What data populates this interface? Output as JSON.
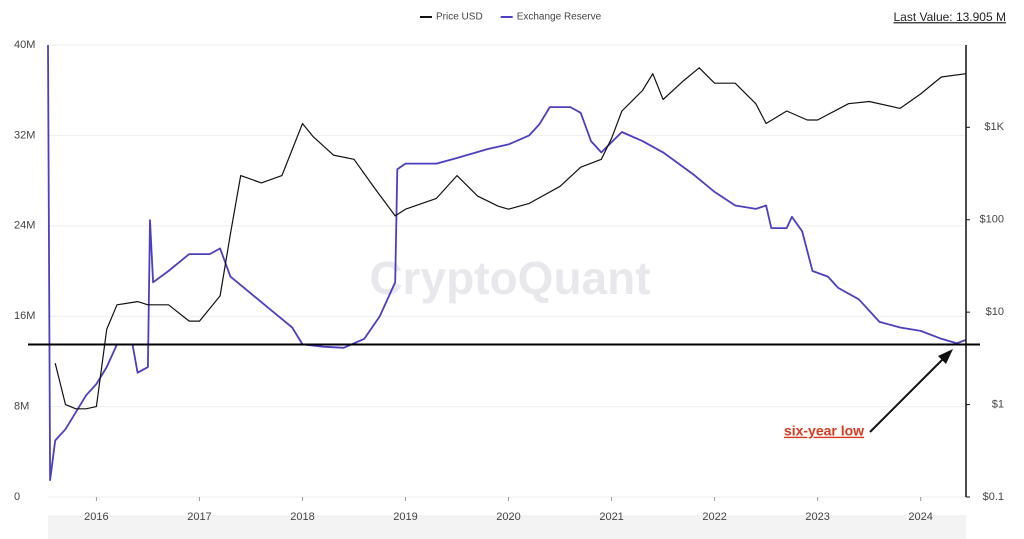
{
  "chart_data": {
    "type": "line",
    "legend": "top",
    "grid": true,
    "last_value": "Last Value: 13.905 M",
    "watermark": "CryptoQuant",
    "annotation": "six-year low",
    "reference_line": 13.5,
    "xlim": [
      2015.53,
      2024.44
    ],
    "xticks": [
      2016,
      2017,
      2018,
      2019,
      2020,
      2021,
      2022,
      2023,
      2024
    ],
    "ylim": [
      0,
      40
    ],
    "yticks": [
      0,
      {
        "value": 8,
        "label": "8M"
      },
      {
        "value": 16,
        "label": "16M"
      },
      {
        "value": 24,
        "label": "24M"
      },
      {
        "value": 32,
        "label": "32M"
      },
      {
        "value": 40,
        "label": "40M"
      }
    ],
    "y2lim": [
      0.1,
      7770
    ],
    "y2_log": true,
    "y2ticks": [
      {
        "value": 0.1,
        "label": "$0.1"
      },
      {
        "value": 1,
        "label": "$1"
      },
      {
        "value": 10,
        "label": "$10"
      },
      {
        "value": 100,
        "label": "$100"
      },
      {
        "value": 1000,
        "label": "$1K"
      }
    ],
    "series": [
      {
        "name": "Price USD",
        "color": "#111111",
        "axis": "y2",
        "x": [
          2015.6,
          2015.7,
          2015.8,
          2015.9,
          2016.0,
          2016.1,
          2016.2,
          2016.4,
          2016.5,
          2016.7,
          2016.9,
          2017.0,
          2017.2,
          2017.3,
          2017.4,
          2017.6,
          2017.8,
          2018.0,
          2018.1,
          2018.3,
          2018.5,
          2018.7,
          2018.9,
          2019.0,
          2019.3,
          2019.5,
          2019.7,
          2019.9,
          2020.0,
          2020.2,
          2020.5,
          2020.7,
          2020.9,
          2021.0,
          2021.1,
          2021.3,
          2021.4,
          2021.5,
          2021.7,
          2021.85,
          2022.0,
          2022.2,
          2022.4,
          2022.5,
          2022.7,
          2022.9,
          2023.0,
          2023.3,
          2023.5,
          2023.8,
          2024.0,
          2024.2,
          2024.44
        ],
        "values": [
          2.8,
          1.0,
          0.9,
          0.9,
          0.95,
          6.5,
          12,
          13,
          12,
          12,
          8,
          8,
          15,
          70,
          300,
          250,
          300,
          1100,
          800,
          500,
          450,
          220,
          110,
          130,
          170,
          300,
          180,
          140,
          130,
          150,
          230,
          370,
          450,
          760,
          1500,
          2500,
          3800,
          2000,
          3200,
          4400,
          3000,
          3000,
          1800,
          1100,
          1500,
          1200,
          1200,
          1800,
          1900,
          1600,
          2300,
          3500,
          3800
        ]
      },
      {
        "name": "Exchange Reserve",
        "color": "#4b3fc0",
        "x": [
          2015.53,
          2015.55,
          2015.6,
          2015.7,
          2015.8,
          2015.9,
          2016.0,
          2016.1,
          2016.2,
          2016.35,
          2016.4,
          2016.5,
          2016.52,
          2016.55,
          2016.7,
          2016.9,
          2017.1,
          2017.2,
          2017.3,
          2017.5,
          2017.7,
          2017.9,
          2018.0,
          2018.2,
          2018.4,
          2018.6,
          2018.75,
          2018.9,
          2018.92,
          2019.0,
          2019.3,
          2019.5,
          2019.8,
          2020.0,
          2020.2,
          2020.3,
          2020.4,
          2020.6,
          2020.7,
          2020.8,
          2020.9,
          2021.1,
          2021.3,
          2021.5,
          2021.8,
          2022.0,
          2022.2,
          2022.4,
          2022.5,
          2022.55,
          2022.7,
          2022.75,
          2022.85,
          2022.95,
          2023.1,
          2023.2,
          2023.4,
          2023.6,
          2023.8,
          2024.0,
          2024.2,
          2024.35,
          2024.44
        ],
        "values": [
          40,
          1.5,
          5,
          6,
          7.5,
          9,
          10,
          11.5,
          13.5,
          13.5,
          11,
          11.5,
          24.5,
          19,
          20,
          21.5,
          21.5,
          22,
          19.5,
          18,
          16.5,
          15,
          13.5,
          13.3,
          13.2,
          14,
          16,
          19,
          29,
          29.5,
          29.5,
          30,
          30.8,
          31.2,
          32,
          33,
          34.5,
          34.5,
          34,
          31.5,
          30.5,
          32.3,
          31.5,
          30.5,
          28.5,
          27,
          25.8,
          25.5,
          25.8,
          23.8,
          23.8,
          24.8,
          23.5,
          20,
          19.5,
          18.5,
          17.5,
          15.5,
          15,
          14.7,
          14,
          13.6,
          13.905
        ]
      }
    ]
  }
}
